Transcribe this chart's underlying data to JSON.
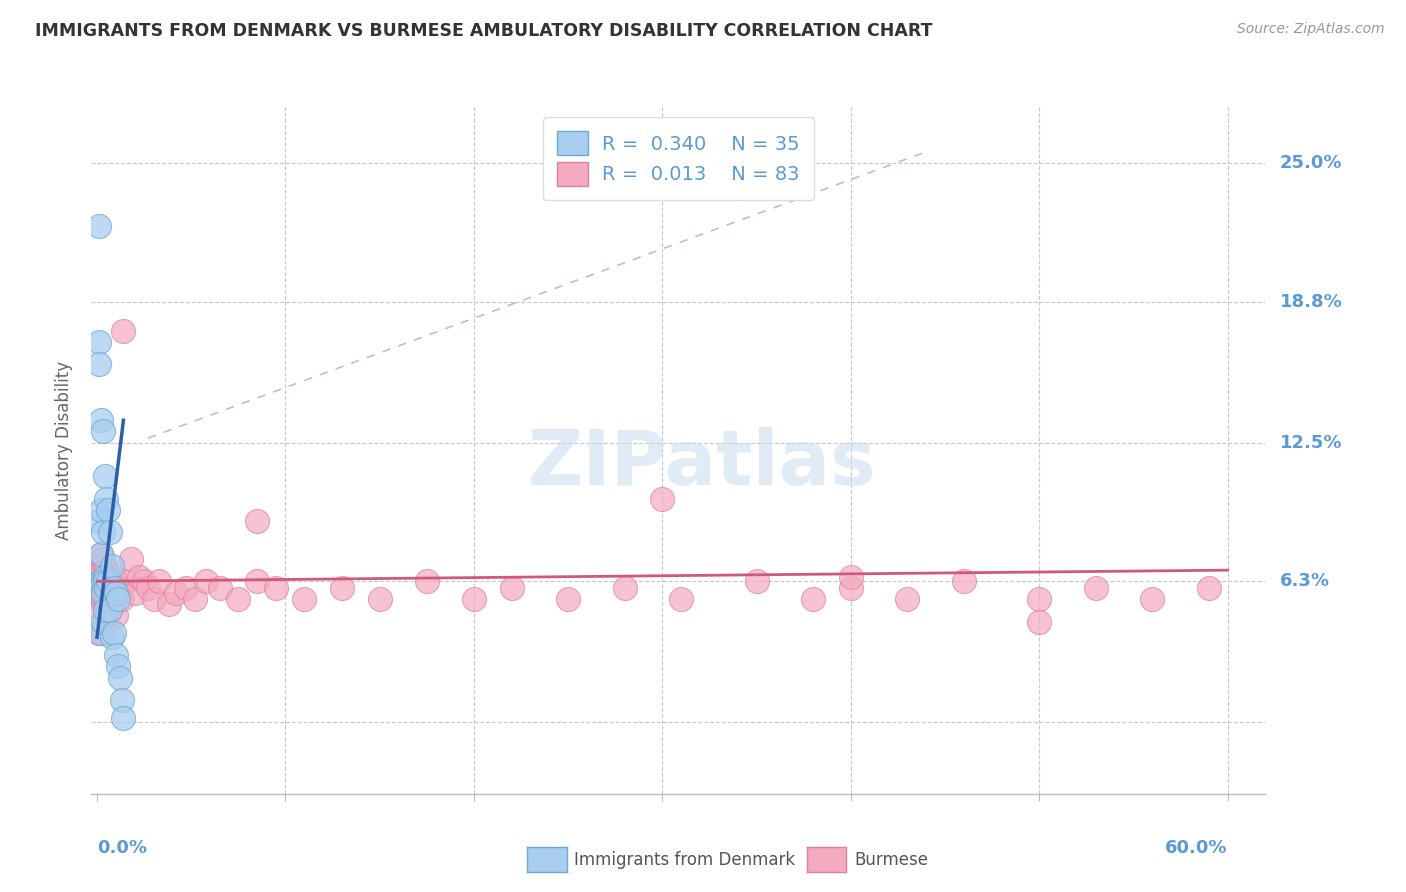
{
  "title": "IMMIGRANTS FROM DENMARK VS BURMESE AMBULATORY DISABILITY CORRELATION CHART",
  "source": "Source: ZipAtlas.com",
  "ylabel": "Ambulatory Disability",
  "ytick_vals": [
    0.0,
    0.063,
    0.125,
    0.188,
    0.25
  ],
  "ytick_labels": [
    "",
    "6.3%",
    "12.5%",
    "18.8%",
    "25.0%"
  ],
  "xlim": [
    -0.003,
    0.62
  ],
  "ylim": [
    -0.032,
    0.275
  ],
  "color_denmark_fill": "#A8CDEE",
  "color_denmark_edge": "#6AAAD4",
  "color_denmark_line": "#2B5FAA",
  "color_burmese_fill": "#F4AABF",
  "color_burmese_edge": "#E080A0",
  "color_burmese_line": "#D05878",
  "color_axis_text": "#5B9BD5",
  "color_grid": "#C8C8C8",
  "bg_color": "#FFFFFF",
  "dk_x": [
    0.001,
    0.001,
    0.001,
    0.001,
    0.001,
    0.002,
    0.002,
    0.002,
    0.002,
    0.003,
    0.003,
    0.003,
    0.003,
    0.003,
    0.004,
    0.004,
    0.004,
    0.004,
    0.005,
    0.005,
    0.006,
    0.006,
    0.007,
    0.007,
    0.008,
    0.008,
    0.009,
    0.009,
    0.01,
    0.01,
    0.011,
    0.011,
    0.012,
    0.013,
    0.014
  ],
  "dk_y": [
    0.222,
    0.17,
    0.16,
    0.09,
    0.04,
    0.135,
    0.095,
    0.075,
    0.063,
    0.13,
    0.085,
    0.063,
    0.058,
    0.045,
    0.11,
    0.065,
    0.063,
    0.05,
    0.1,
    0.06,
    0.095,
    0.063,
    0.085,
    0.05,
    0.07,
    0.038,
    0.06,
    0.04,
    0.058,
    0.03,
    0.055,
    0.025,
    0.02,
    0.01,
    0.002
  ],
  "bm_x": [
    0.001,
    0.001,
    0.001,
    0.001,
    0.001,
    0.001,
    0.002,
    0.002,
    0.002,
    0.002,
    0.002,
    0.002,
    0.002,
    0.003,
    0.003,
    0.003,
    0.003,
    0.003,
    0.003,
    0.004,
    0.004,
    0.004,
    0.004,
    0.004,
    0.005,
    0.005,
    0.005,
    0.005,
    0.006,
    0.006,
    0.006,
    0.007,
    0.007,
    0.007,
    0.008,
    0.008,
    0.009,
    0.009,
    0.01,
    0.01,
    0.011,
    0.012,
    0.013,
    0.014,
    0.016,
    0.018,
    0.02,
    0.022,
    0.025,
    0.027,
    0.03,
    0.033,
    0.038,
    0.042,
    0.047,
    0.052,
    0.058,
    0.065,
    0.075,
    0.085,
    0.095,
    0.085,
    0.11,
    0.13,
    0.15,
    0.175,
    0.2,
    0.22,
    0.25,
    0.28,
    0.31,
    0.35,
    0.38,
    0.4,
    0.43,
    0.46,
    0.5,
    0.53,
    0.56,
    0.59,
    0.3,
    0.4,
    0.5
  ],
  "bm_y": [
    0.07,
    0.065,
    0.06,
    0.058,
    0.055,
    0.04,
    0.075,
    0.068,
    0.063,
    0.06,
    0.055,
    0.05,
    0.04,
    0.073,
    0.068,
    0.063,
    0.06,
    0.055,
    0.04,
    0.07,
    0.065,
    0.06,
    0.055,
    0.045,
    0.068,
    0.063,
    0.058,
    0.05,
    0.065,
    0.06,
    0.055,
    0.063,
    0.058,
    0.05,
    0.06,
    0.053,
    0.065,
    0.055,
    0.063,
    0.048,
    0.058,
    0.06,
    0.055,
    0.175,
    0.063,
    0.073,
    0.058,
    0.065,
    0.063,
    0.06,
    0.055,
    0.063,
    0.053,
    0.058,
    0.06,
    0.055,
    0.063,
    0.06,
    0.055,
    0.063,
    0.06,
    0.09,
    0.055,
    0.06,
    0.055,
    0.063,
    0.055,
    0.06,
    0.055,
    0.06,
    0.055,
    0.063,
    0.055,
    0.06,
    0.055,
    0.063,
    0.055,
    0.06,
    0.055,
    0.06,
    0.1,
    0.065,
    0.045
  ]
}
